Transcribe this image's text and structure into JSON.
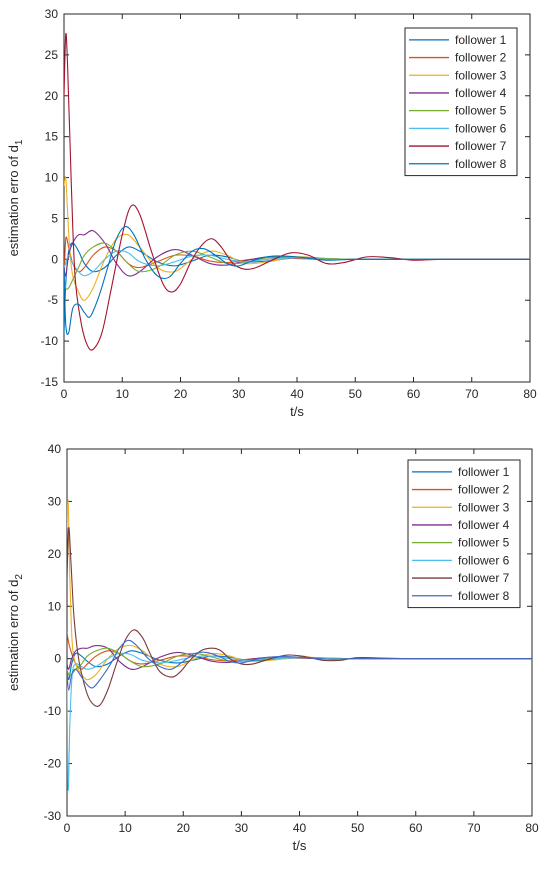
{
  "chart_data": [
    {
      "type": "line",
      "xlabel": "t/s",
      "ylabel": "estimation erro of d",
      "ylabel_sub": "1",
      "xlim": [
        0,
        80
      ],
      "ylim": [
        -15,
        30
      ],
      "xticks": [
        0,
        10,
        20,
        30,
        40,
        50,
        60,
        70,
        80
      ],
      "yticks": [
        -15,
        -10,
        -5,
        0,
        5,
        10,
        15,
        20,
        25,
        30
      ],
      "legend_position": "top-right",
      "grid": false,
      "series": [
        {
          "name": "follower 1",
          "color": "#0072BD",
          "x": [
            0,
            0.3,
            0.8,
            1.5,
            2.5,
            3.5,
            5,
            7,
            9,
            11,
            13,
            16,
            19,
            22,
            25,
            28,
            31,
            35,
            40,
            45,
            50,
            60,
            70,
            80
          ],
          "y": [
            -9,
            -3,
            1,
            2,
            1,
            -0.5,
            -1.5,
            -1,
            0.5,
            1.5,
            1,
            -0.3,
            -0.8,
            -0.2,
            0.5,
            0.3,
            -0.3,
            -0.2,
            0.2,
            0.1,
            0,
            0,
            0,
            0
          ]
        },
        {
          "name": "follower 2",
          "color": "#D95319",
          "x": [
            0,
            0.3,
            0.8,
            1.5,
            2.5,
            3.5,
            5,
            7,
            9,
            11,
            13,
            16,
            19,
            22,
            25,
            28,
            31,
            35,
            40,
            45,
            50,
            60,
            70,
            80
          ],
          "y": [
            -3,
            2.5,
            1.5,
            -0.5,
            -1.5,
            -1,
            0.5,
            1.5,
            1,
            -0.5,
            -1,
            -0.3,
            0.5,
            0.4,
            -0.2,
            -0.4,
            -0.1,
            0.2,
            0.1,
            0,
            0,
            0,
            0,
            0
          ]
        },
        {
          "name": "follower 3",
          "color": "#EDB120",
          "x": [
            0,
            0.3,
            0.6,
            1,
            1.5,
            2.5,
            3.5,
            5,
            7,
            9,
            11,
            13,
            16,
            19,
            22,
            25,
            28,
            31,
            35,
            40,
            45,
            50,
            60,
            70,
            80
          ],
          "y": [
            9,
            10,
            6,
            1,
            -2,
            -4,
            -5,
            -3.5,
            0,
            2.5,
            3,
            1.5,
            -1,
            -1.5,
            0,
            1,
            0.5,
            -0.5,
            -0.3,
            0.3,
            0.1,
            0,
            0,
            0,
            0
          ]
        },
        {
          "name": "follower 4",
          "color": "#7E2F8E",
          "x": [
            0,
            0.3,
            0.8,
            1.5,
            2.5,
            3.5,
            5,
            7,
            9,
            11,
            13,
            16,
            19,
            22,
            25,
            28,
            31,
            35,
            40,
            45,
            50,
            60,
            70,
            80
          ],
          "y": [
            -1,
            -2,
            0.5,
            2,
            3,
            3,
            3.5,
            2,
            -0.5,
            -2,
            -1.5,
            0.3,
            1.2,
            0.5,
            -0.5,
            -0.7,
            -0.2,
            0.3,
            0.2,
            0,
            0,
            0,
            0,
            0
          ]
        },
        {
          "name": "follower 5",
          "color": "#77AC30",
          "x": [
            0,
            0.3,
            0.8,
            1.5,
            2.5,
            3.5,
            5,
            7,
            9,
            11,
            13,
            16,
            19,
            22,
            25,
            28,
            31,
            35,
            40,
            45,
            50,
            60,
            70,
            80
          ],
          "y": [
            -2,
            -3.5,
            -3.5,
            -2.5,
            -1,
            0.5,
            1.5,
            2,
            1,
            -0.5,
            -1.5,
            -1,
            0.5,
            1,
            0.3,
            -0.5,
            -0.4,
            0.2,
            0.3,
            0.1,
            0,
            0,
            0,
            0
          ]
        },
        {
          "name": "follower 6",
          "color": "#4DBEEE",
          "x": [
            0,
            0.3,
            0.8,
            1.5,
            2.5,
            3.5,
            5,
            7,
            9,
            11,
            13,
            16,
            19,
            22,
            25,
            28,
            31,
            35,
            40,
            45,
            50,
            60,
            70,
            80
          ],
          "y": [
            -1,
            -0.5,
            0.5,
            -0.5,
            -1.5,
            -2,
            -1.5,
            0,
            1,
            0.8,
            -0.3,
            -0.8,
            -0.3,
            0.4,
            0.5,
            0,
            -0.3,
            0,
            0.2,
            0,
            0,
            0,
            0,
            0
          ]
        },
        {
          "name": "follower 7",
          "color": "#A2142F",
          "x": [
            0,
            0.3,
            0.6,
            1,
            1.5,
            2,
            3,
            4,
            5,
            6.5,
            8,
            10,
            11.5,
            13,
            15,
            17,
            18.5,
            20,
            22,
            24,
            25.5,
            27,
            29,
            31,
            33,
            36,
            39,
            42,
            45,
            48,
            52,
            56,
            60,
            65,
            70,
            75,
            80
          ],
          "y": [
            20,
            27.5,
            24,
            15,
            4,
            -3,
            -8,
            -10.5,
            -11,
            -9,
            -4,
            3,
            6.5,
            5.5,
            1,
            -3,
            -4,
            -3,
            0,
            2,
            2.5,
            1.5,
            -0.5,
            -1.2,
            -1,
            0,
            0.8,
            0.5,
            -0.5,
            -0.4,
            0.3,
            0.2,
            -0.1,
            0,
            0,
            0,
            0
          ]
        },
        {
          "name": "follower 8",
          "color": "#0072BD",
          "x": [
            0,
            0.3,
            0.8,
            1.5,
            2.5,
            3.5,
            4.5,
            6,
            7.5,
            9,
            10.5,
            12,
            14,
            16,
            18,
            20,
            22,
            24,
            26,
            28,
            30,
            33,
            36,
            40,
            45,
            50,
            60,
            70,
            80
          ],
          "y": [
            -1,
            -8,
            -9,
            -6,
            -5.5,
            -6.5,
            -7,
            -4.5,
            -1,
            2.5,
            4,
            3,
            0,
            -2,
            -2.2,
            -0.5,
            1,
            1.3,
            0.5,
            -0.5,
            -0.8,
            0,
            0.4,
            0.3,
            -0.1,
            0,
            0,
            0,
            0
          ]
        }
      ]
    },
    {
      "type": "line",
      "xlabel": "t/s",
      "ylabel": "estimation erro of d",
      "ylabel_sub": "2",
      "xlim": [
        0,
        80
      ],
      "ylim": [
        -30,
        40
      ],
      "xticks": [
        0,
        10,
        20,
        30,
        40,
        50,
        60,
        70,
        80
      ],
      "yticks": [
        -30,
        -20,
        -10,
        0,
        10,
        20,
        30,
        40
      ],
      "legend_position": "top-right",
      "grid": false,
      "series": [
        {
          "name": "follower 1",
          "color": "#0072BD",
          "x": [
            0,
            0.3,
            0.8,
            1.5,
            2.5,
            3.5,
            5,
            7,
            9,
            11,
            13,
            16,
            19,
            22,
            25,
            28,
            31,
            35,
            40,
            45,
            50,
            60,
            70,
            80
          ],
          "y": [
            -2,
            -4,
            -1,
            1,
            0.5,
            -0.5,
            -1.5,
            -1,
            0.5,
            1.5,
            1,
            -0.3,
            -0.8,
            -0.2,
            0.5,
            0.3,
            -0.3,
            -0.2,
            0.2,
            0.1,
            0,
            0,
            0,
            0
          ]
        },
        {
          "name": "follower 2",
          "color": "#D95319",
          "x": [
            0,
            0.3,
            0.8,
            1.5,
            2.5,
            3.5,
            5,
            7,
            9,
            11,
            13,
            16,
            19,
            22,
            25,
            28,
            31,
            35,
            40,
            45,
            50,
            60,
            70,
            80
          ],
          "y": [
            5,
            3,
            1,
            -1,
            -2,
            -1,
            0.5,
            1.5,
            1,
            -0.5,
            -1,
            -0.3,
            0.5,
            0.4,
            -0.2,
            -0.4,
            -0.1,
            0.2,
            0.1,
            0,
            0,
            0,
            0,
            0
          ]
        },
        {
          "name": "follower 3",
          "color": "#EDB120",
          "x": [
            0,
            0.2,
            0.5,
            0.9,
            1.5,
            2.5,
            3.5,
            5,
            7,
            9,
            11,
            13,
            16,
            19,
            22,
            25,
            28,
            31,
            35,
            40,
            45,
            50,
            60,
            70,
            80
          ],
          "y": [
            25,
            30,
            15,
            3,
            -1,
            -3,
            -4,
            -3,
            0,
            2,
            2.5,
            1.5,
            -1,
            -1.5,
            0,
            1,
            0.5,
            -0.5,
            -0.3,
            0.3,
            0.1,
            0,
            0,
            0,
            0
          ]
        },
        {
          "name": "follower 4",
          "color": "#7E2F8E",
          "x": [
            0,
            0.3,
            0.8,
            1.5,
            2.5,
            3.5,
            5,
            7,
            9,
            11,
            13,
            16,
            19,
            22,
            25,
            28,
            31,
            35,
            40,
            45,
            50,
            60,
            70,
            80
          ],
          "y": [
            -1,
            -2,
            0,
            1.5,
            2,
            2,
            2.5,
            2,
            -0.5,
            -2,
            -1.5,
            0.3,
            1.2,
            0.5,
            -0.5,
            -0.7,
            -0.2,
            0.3,
            0.2,
            0,
            0,
            0,
            0,
            0
          ]
        },
        {
          "name": "follower 5",
          "color": "#77AC30",
          "x": [
            0,
            0.3,
            0.8,
            1.5,
            2.5,
            3.5,
            5,
            7,
            9,
            11,
            13,
            16,
            19,
            22,
            25,
            28,
            31,
            35,
            40,
            45,
            50,
            60,
            70,
            80
          ],
          "y": [
            -2,
            -3,
            -3,
            -2,
            -1,
            0.5,
            1.5,
            2,
            1,
            -0.5,
            -1.5,
            -1,
            0.5,
            1,
            0.3,
            -0.5,
            -0.4,
            0.2,
            0.3,
            0.1,
            0,
            0,
            0,
            0
          ]
        },
        {
          "name": "follower 6",
          "color": "#4DBEEE",
          "x": [
            0,
            0.2,
            0.5,
            0.9,
            1.5,
            2.5,
            3.5,
            5,
            7,
            9,
            11,
            13,
            16,
            19,
            22,
            25,
            28,
            31,
            35,
            40,
            45,
            50,
            60,
            70,
            80
          ],
          "y": [
            -5,
            -25,
            -12,
            -3,
            -1,
            -1.5,
            -2,
            -1.5,
            0,
            1,
            0.8,
            -0.3,
            -0.8,
            -0.3,
            0.4,
            0.5,
            0,
            -0.3,
            0,
            0.2,
            0,
            0,
            0,
            0,
            0
          ]
        },
        {
          "name": "follower 7",
          "color": "#7A3B3B",
          "x": [
            0,
            0.3,
            0.7,
            1.2,
            2,
            3,
            4,
            5.5,
            7,
            8.5,
            10,
            11.5,
            13,
            14.5,
            16,
            18,
            19.5,
            21,
            23,
            25,
            26.5,
            28,
            30,
            32,
            35,
            38,
            41,
            44,
            47,
            50,
            55,
            60,
            65,
            70,
            80
          ],
          "y": [
            15,
            25,
            18,
            8,
            0,
            -5,
            -8,
            -9,
            -6,
            -1,
            3.5,
            5.5,
            4,
            0.5,
            -2.5,
            -3.5,
            -2.5,
            -0.5,
            1.5,
            2,
            1.5,
            0,
            -1,
            -1,
            0,
            0.7,
            0.4,
            -0.3,
            -0.3,
            0.2,
            0.1,
            0,
            0,
            0,
            0
          ]
        },
        {
          "name": "follower 8",
          "color": "#4169C8",
          "x": [
            0,
            0.3,
            0.8,
            1.5,
            2.5,
            3.5,
            4.5,
            6,
            7.5,
            9,
            10.5,
            12,
            14,
            16,
            18,
            20,
            22,
            24,
            26,
            28,
            30,
            33,
            36,
            40,
            45,
            50,
            60,
            70,
            80
          ],
          "y": [
            -3,
            -6,
            -3,
            -2,
            -3.5,
            -5,
            -5.5,
            -3.5,
            -1,
            2,
            3.5,
            2.5,
            0,
            -1.5,
            -2,
            -0.5,
            1,
            1.2,
            0.5,
            -0.5,
            -0.8,
            0,
            0.4,
            0.3,
            -0.1,
            0,
            0,
            0,
            0
          ]
        }
      ]
    }
  ]
}
